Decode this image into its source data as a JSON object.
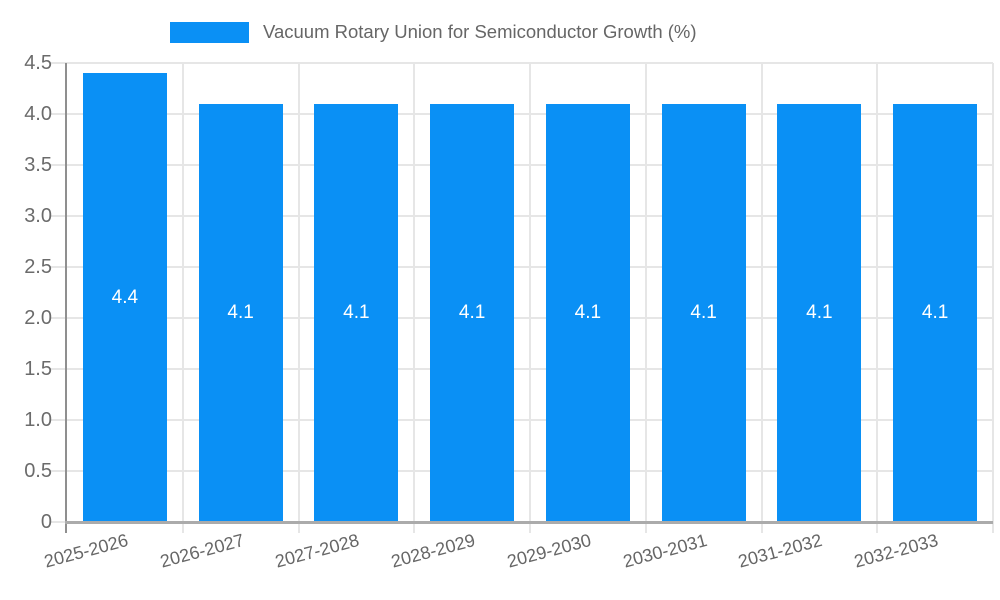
{
  "chart_data": {
    "type": "bar",
    "title": "Vacuum Rotary Union for Semiconductor Growth (%)",
    "legend": {
      "position": "top",
      "label": "Vacuum Rotary Union for Semiconductor Growth (%)"
    },
    "categories": [
      "2025-2026",
      "2026-2027",
      "2027-2028",
      "2028-2029",
      "2029-2030",
      "2030-2031",
      "2031-2032",
      "2032-2033"
    ],
    "series": [
      {
        "name": "Vacuum Rotary Union for Semiconductor Growth (%)",
        "values": [
          4.4,
          4.1,
          4.1,
          4.1,
          4.1,
          4.1,
          4.1,
          4.1
        ]
      }
    ],
    "bar_value_labels": [
      "4.4",
      "4.1",
      "4.1",
      "4.1",
      "4.1",
      "4.1",
      "4.1",
      "4.1"
    ],
    "xlabel": "",
    "ylabel": "",
    "ylim": [
      0,
      4.5
    ],
    "ytick_step": 0.5,
    "ytick_labels": [
      "0",
      "0.5",
      "1.0",
      "1.5",
      "2.0",
      "2.5",
      "3.0",
      "3.5",
      "4.0",
      "4.5"
    ],
    "grid": true,
    "x_tick_label_rotation_deg": -15
  },
  "colors": {
    "bar": "#0a90f5",
    "grid": "#e6e6e6",
    "axis": "#8f8f8f",
    "baseline": "#ababab",
    "tick_label": "#6b6b6b",
    "legend_text": "#666666",
    "value_label": "#ffffff",
    "background": "#ffffff"
  }
}
